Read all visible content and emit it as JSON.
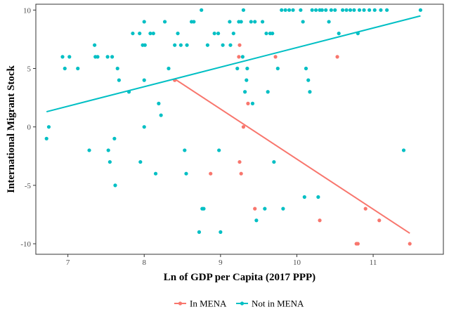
{
  "chart_data": {
    "type": "scatter",
    "title": "",
    "xlabel": "Ln of GDP per Capita (2017 PPP)",
    "ylabel": "International Migrant Stock",
    "xlim": [
      6.58,
      11.92
    ],
    "ylim": [
      -10.9,
      10.5
    ],
    "x_ticks": [
      7,
      8,
      9,
      10,
      11
    ],
    "y_ticks": [
      -10,
      -5,
      0,
      5,
      10
    ],
    "grid": false,
    "legend_position": "bottom",
    "series": [
      {
        "name": "In MENA",
        "color": "#F8766D",
        "points": [
          [
            9.25,
            7
          ],
          [
            9.72,
            6
          ],
          [
            10.53,
            6
          ],
          [
            9.24,
            6
          ],
          [
            8.4,
            4
          ],
          [
            9.36,
            2
          ],
          [
            9.3,
            0
          ],
          [
            8.87,
            -4
          ],
          [
            9.25,
            -3
          ],
          [
            9.27,
            -4
          ],
          [
            9.45,
            -7
          ],
          [
            10.3,
            -8
          ],
          [
            10.78,
            -10
          ],
          [
            10.8,
            -10
          ],
          [
            10.9,
            -7
          ],
          [
            11.08,
            -8
          ],
          [
            11.48,
            -10
          ]
        ],
        "fit_line": [
          [
            8.4,
            4.1
          ],
          [
            11.48,
            -9.1
          ]
        ]
      },
      {
        "name": "Not in MENA",
        "color": "#00BFC4",
        "points": [
          [
            6.72,
            -1
          ],
          [
            6.75,
            0
          ],
          [
            6.93,
            6
          ],
          [
            6.96,
            5
          ],
          [
            7.02,
            6
          ],
          [
            7.13,
            5
          ],
          [
            7.28,
            -2
          ],
          [
            7.35,
            7
          ],
          [
            7.36,
            6
          ],
          [
            7.39,
            6
          ],
          [
            7.52,
            6
          ],
          [
            7.53,
            -2
          ],
          [
            7.55,
            -3
          ],
          [
            7.58,
            6
          ],
          [
            7.61,
            -1
          ],
          [
            7.62,
            -5
          ],
          [
            7.65,
            5
          ],
          [
            7.67,
            4
          ],
          [
            7.8,
            3
          ],
          [
            7.85,
            8
          ],
          [
            7.94,
            8
          ],
          [
            7.95,
            -3
          ],
          [
            7.98,
            7
          ],
          [
            8.0,
            9
          ],
          [
            8.0,
            4
          ],
          [
            8.0,
            0
          ],
          [
            8.01,
            7
          ],
          [
            8.08,
            8
          ],
          [
            8.12,
            8
          ],
          [
            8.15,
            -4
          ],
          [
            8.19,
            2
          ],
          [
            8.22,
            1
          ],
          [
            8.27,
            9
          ],
          [
            8.32,
            5
          ],
          [
            8.4,
            7
          ],
          [
            8.44,
            8
          ],
          [
            8.48,
            7
          ],
          [
            8.53,
            -2
          ],
          [
            8.55,
            -4
          ],
          [
            8.56,
            7
          ],
          [
            8.62,
            9
          ],
          [
            8.65,
            9
          ],
          [
            8.72,
            -9
          ],
          [
            8.75,
            10
          ],
          [
            8.76,
            -7
          ],
          [
            8.78,
            -7
          ],
          [
            8.83,
            7
          ],
          [
            8.92,
            8
          ],
          [
            8.97,
            8
          ],
          [
            8.98,
            -2
          ],
          [
            9.0,
            -9
          ],
          [
            9.03,
            7
          ],
          [
            9.12,
            9
          ],
          [
            9.13,
            7
          ],
          [
            9.17,
            8
          ],
          [
            9.22,
            5
          ],
          [
            9.24,
            9
          ],
          [
            9.27,
            9
          ],
          [
            9.29,
            6
          ],
          [
            9.3,
            10
          ],
          [
            9.32,
            3
          ],
          [
            9.34,
            4
          ],
          [
            9.35,
            5
          ],
          [
            9.4,
            9
          ],
          [
            9.42,
            2
          ],
          [
            9.45,
            9
          ],
          [
            9.47,
            -8
          ],
          [
            9.55,
            9
          ],
          [
            9.58,
            -7
          ],
          [
            9.6,
            8
          ],
          [
            9.62,
            3
          ],
          [
            9.65,
            8
          ],
          [
            9.68,
            8
          ],
          [
            9.7,
            -3
          ],
          [
            9.75,
            5
          ],
          [
            9.8,
            10
          ],
          [
            9.82,
            -7
          ],
          [
            9.85,
            10
          ],
          [
            9.9,
            10
          ],
          [
            9.95,
            10
          ],
          [
            10.05,
            10
          ],
          [
            10.08,
            9
          ],
          [
            10.1,
            -6
          ],
          [
            10.12,
            5
          ],
          [
            10.15,
            4
          ],
          [
            10.17,
            3
          ],
          [
            10.2,
            10
          ],
          [
            10.25,
            10
          ],
          [
            10.28,
            -6
          ],
          [
            10.3,
            10
          ],
          [
            10.33,
            10
          ],
          [
            10.38,
            10
          ],
          [
            10.42,
            9
          ],
          [
            10.45,
            10
          ],
          [
            10.5,
            10
          ],
          [
            10.55,
            8
          ],
          [
            10.6,
            10
          ],
          [
            10.65,
            10
          ],
          [
            10.7,
            10
          ],
          [
            10.75,
            10
          ],
          [
            10.8,
            8
          ],
          [
            10.82,
            10
          ],
          [
            10.88,
            10
          ],
          [
            10.95,
            10
          ],
          [
            11.02,
            10
          ],
          [
            11.1,
            10
          ],
          [
            11.18,
            10
          ],
          [
            11.4,
            -2
          ],
          [
            11.62,
            10
          ]
        ],
        "fit_line": [
          [
            6.72,
            1.3
          ],
          [
            11.62,
            9.5
          ]
        ]
      }
    ]
  }
}
